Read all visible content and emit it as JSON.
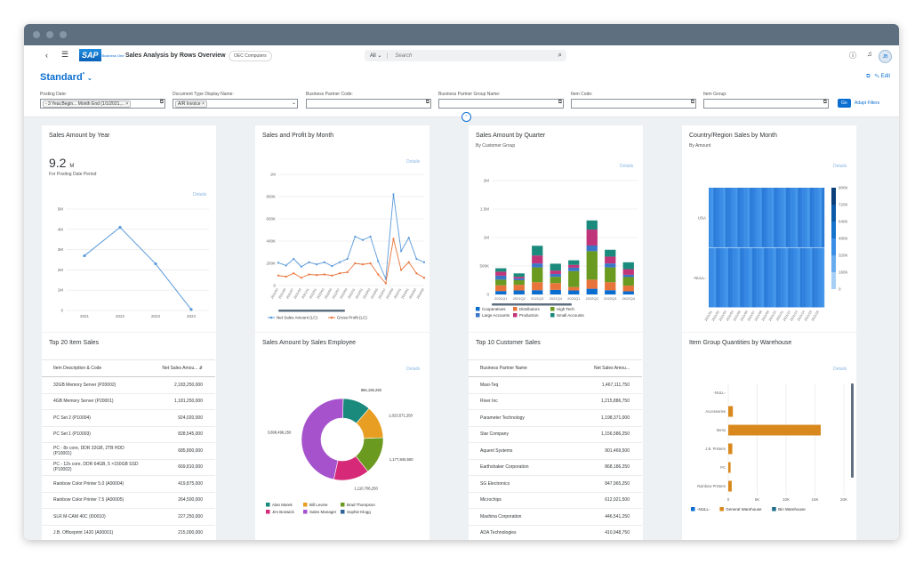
{
  "shell": {
    "title": "Sales Analysis by Rows Overview",
    "company": "OEC Computers",
    "search_scope": "All",
    "search_placeholder": "Search",
    "logo_text": "SAP",
    "logo_sub": "Business One",
    "avatar": "JB"
  },
  "variant": {
    "name": "Standard",
    "edit": "Edit"
  },
  "filters": [
    {
      "label": "Posting Date:",
      "value": "- 3 Year,Begin... Month End (1/1/2021,..."
    },
    {
      "label": "Document Type Display Name:",
      "value": "A/R Invoice"
    },
    {
      "label": "Business Partner Code:",
      "value": ""
    },
    {
      "label": "Business Partner Group Name:",
      "value": ""
    },
    {
      "label": "Item Code:",
      "value": ""
    },
    {
      "label": "Item Group:",
      "value": ""
    }
  ],
  "go": "Go",
  "adapt": "Adapt Filters",
  "cards": {
    "year": {
      "title": "Sales Amount by Year",
      "kpi": "9.2",
      "kpi_unit": "M",
      "sub": "For Posting Date Period",
      "details": "Details"
    },
    "month": {
      "title": "Sales and Profit by Month",
      "details": "Details"
    },
    "quarter": {
      "title": "Sales Amount by Quarter",
      "sub": "By Customer Group",
      "details": "Details"
    },
    "country": {
      "title": "Country/Region Sales by Month",
      "sub": "By Amount",
      "details": "Details"
    },
    "top20": {
      "title": "Top 20 Item Sales",
      "col1": "Item Description & Code",
      "col2": "Net Sales Amou..."
    },
    "employee": {
      "title": "Sales Amount by Sales Employee",
      "details": "Details"
    },
    "top10": {
      "title": "Top 10 Customer Sales",
      "col1": "Business Partner Name",
      "col2": "Net Sales Amou..."
    },
    "warehouse": {
      "title": "Item Group Quantities by Warehouse",
      "details": "Details"
    }
  },
  "top20_rows": [
    {
      "name": "32GB Memory Server (P20002)",
      "value": "2,183,250,000"
    },
    {
      "name": "4GB Memory Server (P20001)",
      "value": "1,181,250,000"
    },
    {
      "name": "PC Set 2 (P10004)",
      "value": "924,020,000"
    },
    {
      "name": "PC Set 1 (P10003)",
      "value": "828,545,000"
    },
    {
      "name": "PC - 8x core, DDR 32GB, 2TB HDD (P10001)",
      "value": "685,800,000"
    },
    {
      "name": "PC - 12x core, DDR 64GB, 5 ×150GB SSD (P10002)",
      "value": "669,810,000"
    },
    {
      "name": "Rainbow Color Printer 5.0 (A00004)",
      "value": "419,875,000"
    },
    {
      "name": "Rainbow Color Printer 7.5 (A00005)",
      "value": "264,500,000"
    },
    {
      "name": "SLR M-CAM 40C (I00010)",
      "value": "227,250,000"
    },
    {
      "name": "J.B. Officeprint 1420 (A00001)",
      "value": "215,000,000"
    }
  ],
  "top10_rows": [
    {
      "name": "Maxi-Teq",
      "value": "1,467,111,750"
    },
    {
      "name": "River Inc",
      "value": "1,215,886,750"
    },
    {
      "name": "Parameter Technology",
      "value": "1,198,371,000"
    },
    {
      "name": "Star Company",
      "value": "1,156,586,250"
    },
    {
      "name": "Aquent Systems",
      "value": "901,469,500"
    },
    {
      "name": "Earthshaker Corporation",
      "value": "868,186,250"
    },
    {
      "name": "SG Electronics",
      "value": "847,965,250"
    },
    {
      "name": "Microchips",
      "value": "612,921,500"
    },
    {
      "name": "Mashina Corporation",
      "value": "446,541,250"
    },
    {
      "name": "ADA Technologies",
      "value": "410,948,750"
    }
  ],
  "chart_data": [
    {
      "type": "line",
      "title": "Sales Amount by Year",
      "categories": [
        "2021",
        "2022",
        "2023",
        "2024"
      ],
      "values": [
        2.7,
        4.1,
        2.3,
        0.05
      ],
      "ylim": [
        0,
        5
      ],
      "yticks": [
        "0",
        "1M",
        "2M",
        "3M",
        "4M",
        "5M"
      ],
      "color": "#5899da"
    },
    {
      "type": "line",
      "title": "Sales and Profit by Month",
      "categories": [
        "2021/03",
        "2021/05",
        "2021/07",
        "2021/09",
        "2021/11",
        "2022/01",
        "2022/03",
        "2022/05",
        "2022/07",
        "2022/09",
        "2022/11",
        "2023/01",
        "2023/03",
        "2023/05",
        "2023/07",
        "2023/09",
        "2023/11",
        "2024/01",
        "2024/03",
        "2024/05"
      ],
      "series": [
        {
          "name": "Net Sales Amount (LC)",
          "values": [
            205,
            180,
            240,
            170,
            210,
            190,
            210,
            175,
            210,
            240,
            440,
            410,
            440,
            220,
            60,
            820,
            310,
            430,
            240,
            210
          ],
          "color": "#5899da"
        },
        {
          "name": "Gross Profit (LC)",
          "values": [
            90,
            80,
            110,
            70,
            100,
            95,
            100,
            90,
            110,
            120,
            200,
            190,
            200,
            100,
            20,
            420,
            140,
            210,
            110,
            70
          ],
          "color": "#e8743b"
        }
      ],
      "ylim": [
        0,
        1000
      ],
      "yticks": [
        "0",
        "200K",
        "400K",
        "600K",
        "800K",
        "1M"
      ]
    },
    {
      "type": "bar",
      "title": "Sales Amount by Quarter",
      "categories": [
        "2021Q1",
        "2021Q2",
        "2021Q3",
        "2021Q4",
        "2022Q1",
        "2022Q2",
        "2022Q3",
        "2022Q4"
      ],
      "series": [
        {
          "name": "Cooperatives",
          "values": [
            60,
            70,
            75,
            80,
            70,
            100,
            75,
            55
          ],
          "color": "#0a6ed1"
        },
        {
          "name": "Distributors",
          "values": [
            100,
            100,
            140,
            120,
            60,
            160,
            140,
            100
          ],
          "color": "#e8743b"
        },
        {
          "name": "High Tech",
          "values": [
            100,
            80,
            260,
            110,
            280,
            500,
            260,
            150
          ],
          "color": "#6a9a1f"
        },
        {
          "name": "Large Accounts",
          "values": [
            70,
            30,
            70,
            50,
            60,
            100,
            70,
            40
          ],
          "color": "#3a76c7"
        },
        {
          "name": "Production",
          "values": [
            70,
            30,
            140,
            60,
            50,
            280,
            120,
            100
          ],
          "color": "#c0357a"
        },
        {
          "name": "Small Accounts",
          "values": [
            60,
            60,
            170,
            120,
            80,
            160,
            120,
            120
          ],
          "color": "#1a8a7c"
        }
      ],
      "ylim": [
        0,
        2000
      ],
      "yticks": [
        "0",
        "500K",
        "1M",
        "1.5M",
        "2M"
      ]
    },
    {
      "type": "heatmap",
      "title": "Country/Region Sales by Month",
      "rows": [
        "USA",
        "-NULL-"
      ],
      "legend": [
        "0",
        "160K",
        "320K",
        "480K",
        "640K",
        "720K",
        "900K"
      ]
    },
    {
      "type": "pie",
      "title": "Sales Amount by Sales Employee",
      "slices": [
        {
          "name": "Alan Marek",
          "value": 866196250,
          "color": "#1a8a7c"
        },
        {
          "name": "Bill Levine",
          "value": 1023571250,
          "color": "#e89e23"
        },
        {
          "name": "Brad Thompson",
          "value": 1177840500,
          "color": "#6a9a1f"
        },
        {
          "name": "Jim Boswick",
          "value": 1110706250,
          "color": "#d62a78"
        },
        {
          "name": "Sales Manager",
          "value": 3698496250,
          "color": "#a552cc"
        },
        {
          "name": "Sophie Klogg",
          "value": 0,
          "color": "#2f6497"
        }
      ],
      "labels": [
        "866,196,250",
        "1,023,571,250",
        "1,177,840,500",
        "1,110,706,250",
        "3,698,496,250"
      ]
    },
    {
      "type": "bar",
      "title": "Item Group Quantities by Warehouse",
      "orientation": "horizontal",
      "categories": [
        "-NULL-",
        "Accessories",
        "Items",
        "J.B. Printers",
        "PC",
        "Rainbow Printers"
      ],
      "series": [
        {
          "name": "-NULL-",
          "values": [
            0,
            0,
            0,
            0,
            0,
            0
          ],
          "color": "#0a6ed1"
        },
        {
          "name": "General Warehouse",
          "values": [
            0,
            800,
            16000,
            700,
            400,
            600
          ],
          "color": "#d8881c"
        },
        {
          "name": "Bin Warehouse",
          "values": [
            0,
            0,
            0,
            0,
            0,
            0
          ],
          "color": "#1f6e8a"
        }
      ],
      "xlim": [
        0,
        20000
      ],
      "xticks": [
        "0",
        "5K",
        "10K",
        "15K",
        "20K"
      ]
    }
  ]
}
